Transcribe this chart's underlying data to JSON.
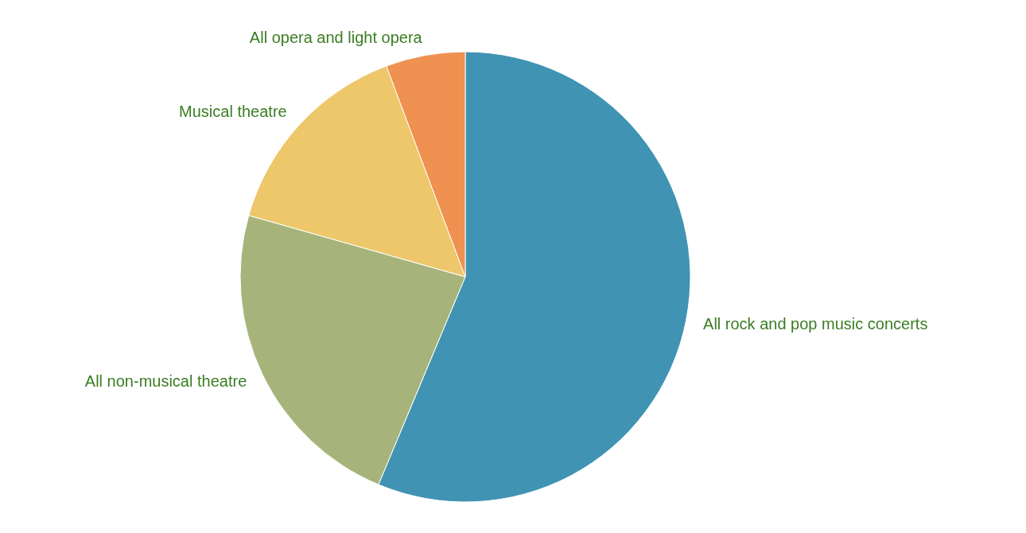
{
  "chart_data": {
    "type": "pie",
    "categories": [
      "All rock and pop music concerts",
      "All non-musical theatre",
      "Musical theatre",
      "All opera and light opera"
    ],
    "values": [
      56.3,
      23.1,
      14.9,
      5.7
    ],
    "colors": [
      "#4093b3",
      "#a6b47b",
      "#edc76a",
      "#ef9150"
    ]
  }
}
